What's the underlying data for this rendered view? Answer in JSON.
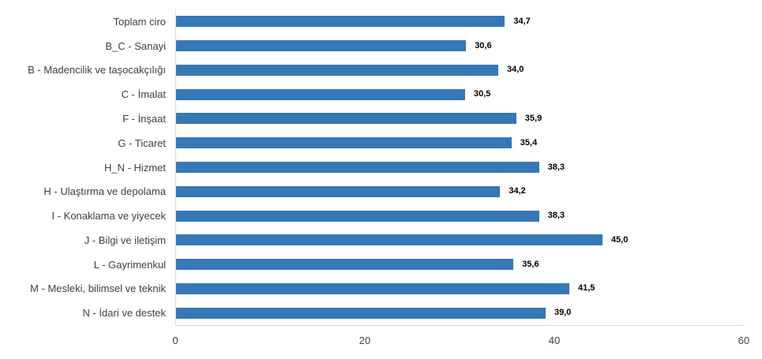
{
  "chart_data": {
    "type": "bar",
    "orientation": "horizontal",
    "title": "",
    "xlabel": "",
    "ylabel": "",
    "categories": [
      "Toplam ciro",
      "B_C - Sanayi",
      "B - Madencilik ve taşocakçılığı",
      "C - İmalat",
      "F - İnşaat",
      "G - Ticaret",
      "H_N - Hizmet",
      "H - Ulaştırma ve depolama",
      "I - Konaklama ve yiyecek",
      "J - Bilgi ve iletişim",
      "L - Gayrimenkul",
      "M - Mesleki, bilimsel ve teknik",
      "N - İdari ve destek"
    ],
    "values": [
      34.7,
      30.6,
      34.0,
      30.5,
      35.9,
      35.4,
      38.3,
      34.2,
      38.3,
      45.0,
      35.6,
      41.5,
      39.0
    ],
    "value_labels": [
      "34,7",
      "30,6",
      "34,0",
      "30,5",
      "35,9",
      "35,4",
      "38,3",
      "34,2",
      "38,3",
      "45,0",
      "35,6",
      "41,5",
      "39,0"
    ],
    "xlim": [
      0,
      60
    ],
    "x_ticks": [
      0,
      20,
      40,
      60
    ],
    "x_tick_labels": [
      "0",
      "20",
      "40",
      "60"
    ],
    "grid": false,
    "legend": false,
    "colors": {
      "bar": "#3478b6",
      "axis_line": "#d9d9d9",
      "category_label": "#404040",
      "value_label": "#000000",
      "tick_label": "#404040",
      "background": "#ffffff"
    }
  }
}
